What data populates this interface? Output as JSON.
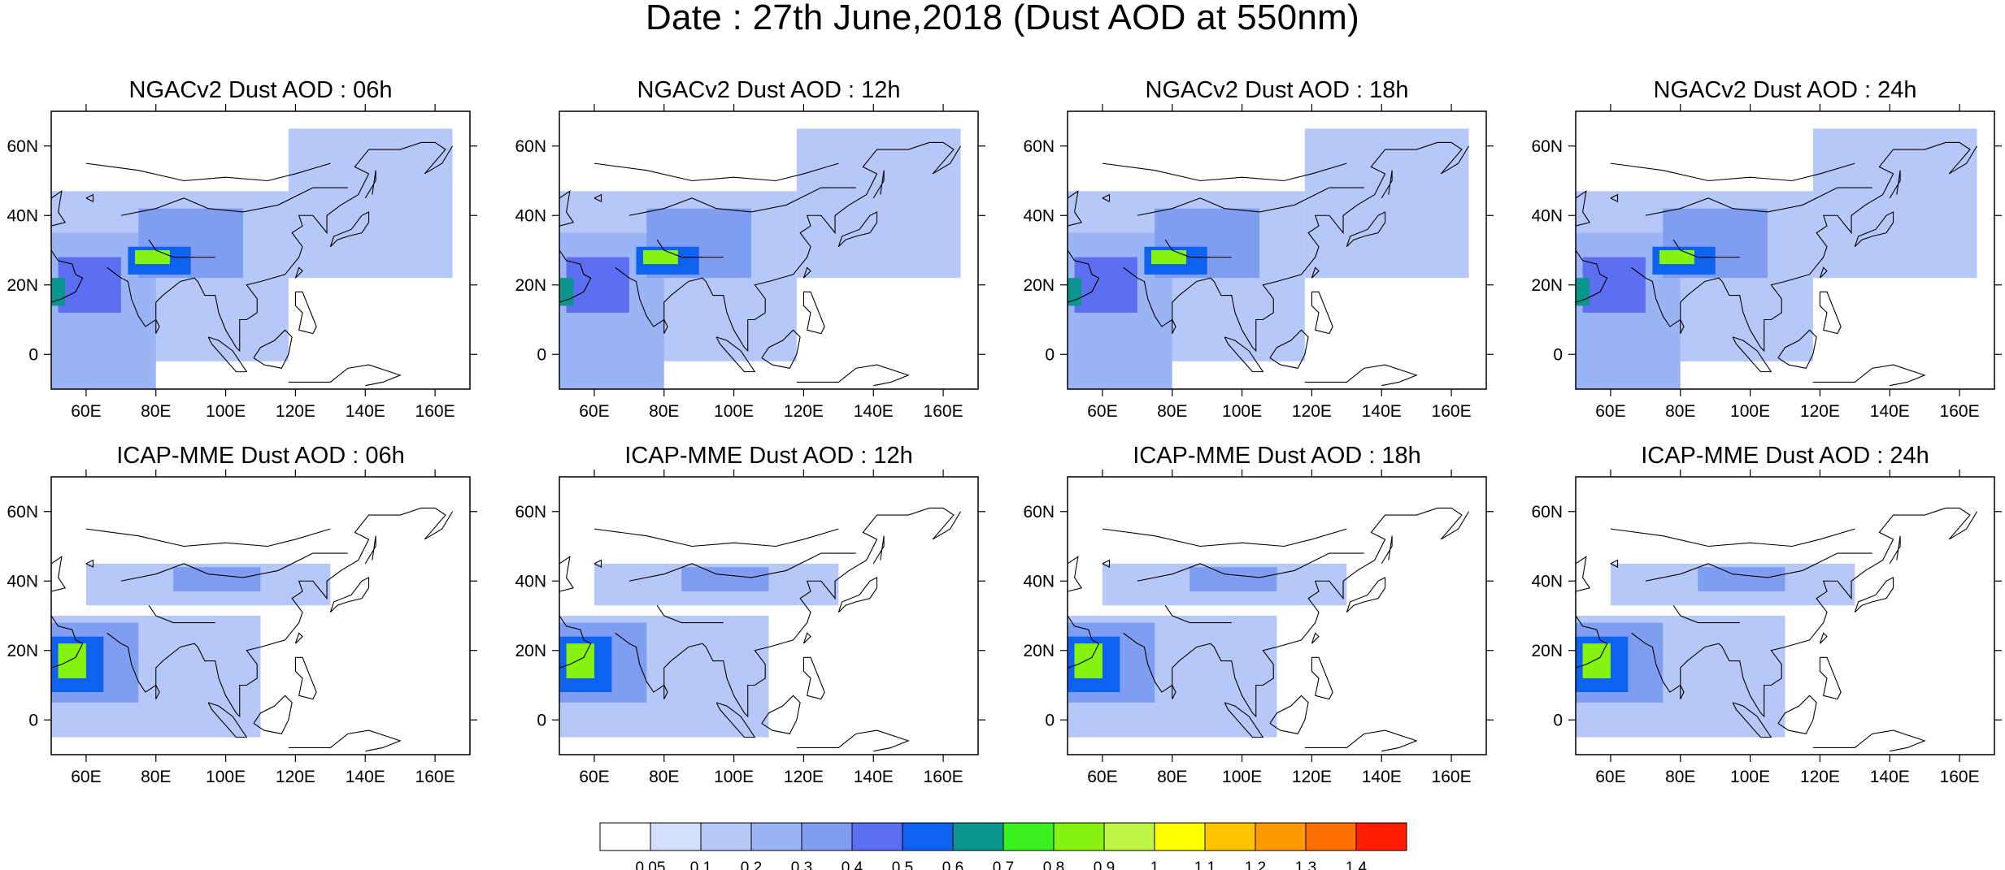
{
  "title": "Date : 27th June,2018 (Dust AOD at 550nm)",
  "panel_titles": [
    "NGACv2 Dust AOD : 06h",
    "NGACv2 Dust AOD : 12h",
    "NGACv2 Dust AOD : 18h",
    "NGACv2 Dust AOD : 24h",
    "ICAP-MME Dust AOD : 06h",
    "ICAP-MME Dust AOD : 12h",
    "ICAP-MME Dust AOD : 18h",
    "ICAP-MME Dust AOD : 24h"
  ],
  "x_ticks": [
    "60E",
    "80E",
    "100E",
    "120E",
    "140E",
    "160E"
  ],
  "y_ticks": [
    "60N",
    "40N",
    "20N",
    "0"
  ],
  "colorbar": {
    "labels": [
      "0.05",
      "0.1",
      "0.2",
      "0.3",
      "0.4",
      "0.5",
      "0.6",
      "0.7",
      "0.8",
      "0.9",
      "1",
      "1.1",
      "1.2",
      "1.3",
      "1.4"
    ],
    "colors": [
      "#ffffff",
      "#d4e0fb",
      "#b6c8f8",
      "#9ab4f6",
      "#7f9ef2",
      "#5c6ff0",
      "#0d62ef",
      "#0a968e",
      "#3bf01f",
      "#86f20f",
      "#bdf547",
      "#ffff00",
      "#ffc400",
      "#ff9a00",
      "#ff6e00",
      "#ff1e00"
    ]
  },
  "chart_data": {
    "type": "heatmap",
    "description_of_content": null,
    "panels": [
      {
        "model": "NGACv2",
        "lead": "06h",
        "row": 0,
        "col": 0
      },
      {
        "model": "NGACv2",
        "lead": "12h",
        "row": 0,
        "col": 1
      },
      {
        "model": "NGACv2",
        "lead": "18h",
        "row": 0,
        "col": 2
      },
      {
        "model": "NGACv2",
        "lead": "24h",
        "row": 0,
        "col": 3
      },
      {
        "model": "ICAP-MME",
        "lead": "06h",
        "row": 1,
        "col": 0
      },
      {
        "model": "ICAP-MME",
        "lead": "12h",
        "row": 1,
        "col": 1
      },
      {
        "model": "ICAP-MME",
        "lead": "18h",
        "row": 1,
        "col": 2
      },
      {
        "model": "ICAP-MME",
        "lead": "24h",
        "row": 1,
        "col": 3
      }
    ],
    "xlim": [
      50,
      170
    ],
    "ylim": [
      -10,
      70
    ],
    "x_tick_values": [
      60,
      80,
      100,
      120,
      140,
      160
    ],
    "y_tick_values": [
      60,
      40,
      20,
      0
    ],
    "contour_levels": [
      0.05,
      0.1,
      0.2,
      0.3,
      0.4,
      0.5,
      0.6,
      0.7,
      0.8,
      0.9,
      1,
      1.1,
      1.2,
      1.3,
      1.4
    ],
    "ngac_regions": [
      {
        "lon": [
          50,
          118
        ],
        "lat": [
          -2,
          47
        ],
        "aod": 0.15
      },
      {
        "lon": [
          118,
          165
        ],
        "lat": [
          22,
          65
        ],
        "aod": 0.1
      },
      {
        "lon": [
          50,
          80
        ],
        "lat": [
          -10,
          35
        ],
        "aod": 0.25
      },
      {
        "lon": [
          75,
          105
        ],
        "lat": [
          22,
          42
        ],
        "aod": 0.3
      },
      {
        "lon": [
          52,
          70
        ],
        "lat": [
          12,
          28
        ],
        "aod": 0.4
      },
      {
        "lon": [
          50,
          54
        ],
        "lat": [
          14,
          22
        ],
        "aod": 0.6
      },
      {
        "lon": [
          72,
          90
        ],
        "lat": [
          23,
          31
        ],
        "aod": 0.5
      },
      {
        "lon": [
          74,
          84
        ],
        "lat": [
          26,
          30
        ],
        "aod": 0.8
      }
    ],
    "icap_regions": [
      {
        "lon": [
          50,
          110
        ],
        "lat": [
          -5,
          30
        ],
        "aod": 0.15
      },
      {
        "lon": [
          60,
          130
        ],
        "lat": [
          33,
          45
        ],
        "aod": 0.15
      },
      {
        "lon": [
          85,
          110
        ],
        "lat": [
          37,
          44
        ],
        "aod": 0.3
      },
      {
        "lon": [
          50,
          75
        ],
        "lat": [
          5,
          28
        ],
        "aod": 0.3
      },
      {
        "lon": [
          50,
          65
        ],
        "lat": [
          8,
          24
        ],
        "aod": 0.5
      },
      {
        "lon": [
          52,
          60
        ],
        "lat": [
          12,
          22
        ],
        "aod": 0.8
      }
    ]
  }
}
